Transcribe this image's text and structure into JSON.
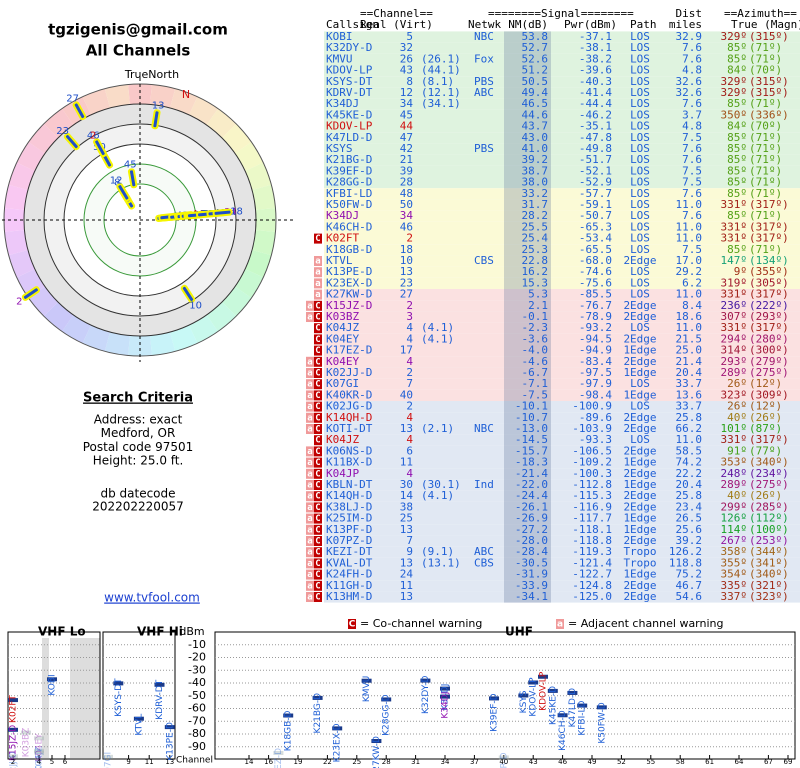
{
  "header": {
    "email": "tgzigenis@gmail.com",
    "title": "All Channels"
  },
  "radar": {
    "title": "TrueNorth",
    "north": "N"
  },
  "search": {
    "title": "Search Criteria",
    "lines": [
      "Address: exact",
      "Medford, OR",
      "Postal code 97501",
      "Height: 25.0 ft."
    ]
  },
  "datecode": {
    "label": "db datecode",
    "value": "202202220057"
  },
  "link": "www.tvfool.com",
  "table": {
    "group_headers": {
      "channel": "==Channel==",
      "signal": "========Signal========",
      "dist": "Dist",
      "azimuth": "==Azimuth=="
    },
    "headers": {
      "callsign": "Callsign",
      "channel": "Real (Virt)",
      "network": "Netwk",
      "nm": "NM(dB)",
      "pwr": "Pwr(dBm)",
      "path": "Path",
      "dist": "miles",
      "azimuth": "True (Magn)"
    },
    "rows": [
      {
        "call": "KOBI",
        "real": "5",
        "net": "NBC",
        "nm": "53.8",
        "pwr": "-37.1",
        "path": "LOS",
        "dist": "32.9",
        "true": "329º",
        "magn": "(315º)"
      },
      {
        "call": "K32DY-D",
        "real": "32",
        "nm": "52.7",
        "pwr": "-38.1",
        "path": "LOS",
        "dist": "7.6",
        "true": "85º",
        "magn": "(71º)"
      },
      {
        "call": "KMVU",
        "real": "26",
        "virt": "(26.1)",
        "net": "Fox",
        "nm": "52.6",
        "pwr": "-38.2",
        "path": "LOS",
        "dist": "7.6",
        "true": "85º",
        "magn": "(71º)"
      },
      {
        "call": "KDOV-LP",
        "real": "43",
        "virt": "(44.1)",
        "nm": "51.2",
        "pwr": "-39.6",
        "path": "LOS",
        "dist": "4.8",
        "true": "84º",
        "magn": "(70º)"
      },
      {
        "call": "KSYS-DT",
        "real": "8",
        "virt": "(8.1)",
        "net": "PBS",
        "nm": "50.5",
        "pwr": "-40.3",
        "path": "LOS",
        "dist": "32.6",
        "true": "329º",
        "magn": "(315º)"
      },
      {
        "call": "KDRV-DT",
        "real": "12",
        "virt": "(12.1)",
        "net": "ABC",
        "nm": "49.4",
        "pwr": "-41.4",
        "path": "LOS",
        "dist": "32.6",
        "true": "329º",
        "magn": "(315º)"
      },
      {
        "call": "K34DJ",
        "real": "34",
        "virt": "(34.1)",
        "nm": "46.5",
        "pwr": "-44.4",
        "path": "LOS",
        "dist": "7.6",
        "true": "85º",
        "magn": "(71º)"
      },
      {
        "call": "K45KE-D",
        "real": "45",
        "nm": "44.6",
        "pwr": "-46.2",
        "path": "LOS",
        "dist": "3.7",
        "true": "350º",
        "magn": "(336º)"
      },
      {
        "call": "KDOV-LP",
        "real": "44",
        "nm": "43.7",
        "pwr": "-35.1",
        "path": "LOS",
        "dist": "4.8",
        "true": "84º",
        "magn": "(70º)",
        "color": "#d01010"
      },
      {
        "call": "K47LD-D",
        "real": "47",
        "nm": "43.0",
        "pwr": "-47.8",
        "path": "LOS",
        "dist": "7.5",
        "true": "85º",
        "magn": "(71º)"
      },
      {
        "call": "KSYS",
        "real": "42",
        "net": "PBS",
        "nm": "41.0",
        "pwr": "-49.8",
        "path": "LOS",
        "dist": "7.6",
        "true": "85º",
        "magn": "(71º)"
      },
      {
        "call": "K21BG-D",
        "real": "21",
        "nm": "39.2",
        "pwr": "-51.7",
        "path": "LOS",
        "dist": "7.6",
        "true": "85º",
        "magn": "(71º)"
      },
      {
        "call": "K39EF-D",
        "real": "39",
        "nm": "38.7",
        "pwr": "-52.1",
        "path": "LOS",
        "dist": "7.5",
        "true": "85º",
        "magn": "(71º)"
      },
      {
        "call": "K28GG-D",
        "real": "28",
        "nm": "38.0",
        "pwr": "-52.9",
        "path": "LOS",
        "dist": "7.5",
        "true": "85º",
        "magn": "(71º)"
      },
      {
        "call": "KFBI-LD",
        "real": "48",
        "nm": "33.2",
        "pwr": "-57.7",
        "path": "LOS",
        "dist": "7.6",
        "true": "85º",
        "magn": "(71º)"
      },
      {
        "call": "K50FW-D",
        "real": "50",
        "nm": "31.7",
        "pwr": "-59.1",
        "path": "LOS",
        "dist": "11.0",
        "true": "331º",
        "magn": "(317º)"
      },
      {
        "call": "K34DJ",
        "real": "34",
        "nm": "28.2",
        "pwr": "-50.7",
        "path": "LOS",
        "dist": "7.6",
        "true": "85º",
        "magn": "(71º)",
        "color": "#9010b0"
      },
      {
        "call": "K46CH-D",
        "real": "46",
        "nm": "25.5",
        "pwr": "-65.3",
        "path": "LOS",
        "dist": "11.0",
        "true": "331º",
        "magn": "(317º)"
      },
      {
        "warn": [
          "C"
        ],
        "call": "K02FT",
        "real": "2",
        "nm": "25.4",
        "pwr": "-53.4",
        "path": "LOS",
        "dist": "11.0",
        "true": "331º",
        "magn": "(317º)",
        "color": "#d01010"
      },
      {
        "call": "K18GB-D",
        "real": "18",
        "nm": "25.3",
        "pwr": "-65.5",
        "path": "LOS",
        "dist": "7.5",
        "true": "85º",
        "magn": "(71º)"
      },
      {
        "warn": [
          "a"
        ],
        "call": "KTVL",
        "real": "10",
        "net": "CBS",
        "nm": "22.8",
        "pwr": "-68.0",
        "path": "2Edge",
        "dist": "17.0",
        "true": "147º",
        "magn": "(134º)"
      },
      {
        "warn": [
          "a"
        ],
        "call": "K13PE-D",
        "real": "13",
        "nm": "16.2",
        "pwr": "-74.6",
        "path": "LOS",
        "dist": "29.2",
        "true": "9º",
        "magn": "(355º)"
      },
      {
        "warn": [
          "a"
        ],
        "call": "K23EX-D",
        "real": "23",
        "nm": "15.3",
        "pwr": "-75.6",
        "path": "LOS",
        "dist": "6.2",
        "true": "319º",
        "magn": "(305º)"
      },
      {
        "warn": [
          "a"
        ],
        "call": "K27KW-D",
        "real": "27",
        "nm": "5.3",
        "pwr": "-85.5",
        "path": "LOS",
        "dist": "11.0",
        "true": "331º",
        "magn": "(317º)"
      },
      {
        "warn": [
          "a",
          "C"
        ],
        "call": "K15JZ-D",
        "real": "2",
        "nm": "2.1",
        "pwr": "-76.7",
        "path": "2Edge",
        "dist": "8.4",
        "true": "236º",
        "magn": "(222º)",
        "color": "#9010b0"
      },
      {
        "warn": [
          "a",
          "C"
        ],
        "call": "K03BZ",
        "real": "3",
        "nm": "-0.1",
        "pwr": "-78.9",
        "path": "2Edge",
        "dist": "18.6",
        "true": "307º",
        "magn": "(293º)",
        "color": "#9010b0"
      },
      {
        "warn": [
          "C"
        ],
        "call": "K04JZ",
        "real": "4",
        "virt": "(4.1)",
        "nm": "-2.3",
        "pwr": "-93.2",
        "path": "LOS",
        "dist": "11.0",
        "true": "331º",
        "magn": "(317º)"
      },
      {
        "warn": [
          "C"
        ],
        "call": "K04EY",
        "real": "4",
        "virt": "(4.1)",
        "nm": "-3.6",
        "pwr": "-94.5",
        "path": "2Edge",
        "dist": "21.5",
        "true": "294º",
        "magn": "(280º)"
      },
      {
        "warn": [
          "C"
        ],
        "call": "K17EZ-D",
        "real": "17",
        "nm": "-4.0",
        "pwr": "-94.9",
        "path": "1Edge",
        "dist": "25.0",
        "true": "314º",
        "magn": "(300º)"
      },
      {
        "warn": [
          "a",
          "C"
        ],
        "call": "K04EY",
        "real": "4",
        "nm": "-4.6",
        "pwr": "-83.4",
        "path": "2Edge",
        "dist": "21.4",
        "true": "293º",
        "magn": "(279º)",
        "color": "#9010b0"
      },
      {
        "warn": [
          "a",
          "C"
        ],
        "call": "K02JJ-D",
        "real": "2",
        "nm": "-6.7",
        "pwr": "-97.5",
        "path": "1Edge",
        "dist": "20.4",
        "true": "289º",
        "magn": "(275º)"
      },
      {
        "warn": [
          "a",
          "C"
        ],
        "call": "K07GI",
        "real": "7",
        "nm": "-7.1",
        "pwr": "-97.9",
        "path": "LOS",
        "dist": "33.7",
        "true": "26º",
        "magn": "(12º)"
      },
      {
        "warn": [
          "a",
          "C"
        ],
        "call": "K40KR-D",
        "real": "40",
        "nm": "-7.5",
        "pwr": "-98.4",
        "path": "1Edge",
        "dist": "13.6",
        "true": "323º",
        "magn": "(309º)"
      },
      {
        "warn": [
          "a",
          "C"
        ],
        "call": "K02JG-D",
        "real": "2",
        "nm": "-10.1",
        "pwr": "-100.9",
        "path": "LOS",
        "dist": "33.7",
        "true": "26º",
        "magn": "(12º)"
      },
      {
        "warn": [
          "a",
          "C"
        ],
        "call": "K14QH-D",
        "real": "4",
        "nm": "-10.7",
        "pwr": "-89.6",
        "path": "2Edge",
        "dist": "25.8",
        "true": "40º",
        "magn": "(26º)",
        "color": "#d01010"
      },
      {
        "warn": [
          "a",
          "C"
        ],
        "call": "KOTI-DT",
        "real": "13",
        "virt": "(2.1)",
        "net": "NBC",
        "nm": "-13.0",
        "pwr": "-103.9",
        "path": "2Edge",
        "dist": "66.2",
        "true": "101º",
        "magn": "(87º)"
      },
      {
        "warn": [
          "C"
        ],
        "call": "K04JZ",
        "real": "4",
        "nm": "-14.5",
        "pwr": "-93.3",
        "path": "LOS",
        "dist": "11.0",
        "true": "331º",
        "magn": "(317º)",
        "color": "#d01010"
      },
      {
        "warn": [
          "a",
          "C"
        ],
        "call": "K06NS-D",
        "real": "6",
        "nm": "-15.7",
        "pwr": "-106.5",
        "path": "2Edge",
        "dist": "58.5",
        "true": "91º",
        "magn": "(77º)"
      },
      {
        "warn": [
          "a",
          "C"
        ],
        "call": "K11BX-D",
        "real": "11",
        "nm": "-18.3",
        "pwr": "-109.2",
        "path": "1Edge",
        "dist": "74.2",
        "true": "353º",
        "magn": "(340º)"
      },
      {
        "warn": [
          "a",
          "C"
        ],
        "call": "K04JP",
        "real": "4",
        "nm": "-21.4",
        "pwr": "-100.3",
        "path": "2Edge",
        "dist": "22.2",
        "true": "248º",
        "magn": "(234º)",
        "color": "#9010b0"
      },
      {
        "warn": [
          "a",
          "C"
        ],
        "call": "KBLN-DT",
        "real": "30",
        "virt": "(30.1)",
        "net": "Ind",
        "nm": "-22.0",
        "pwr": "-112.8",
        "path": "1Edge",
        "dist": "20.4",
        "true": "289º",
        "magn": "(275º)"
      },
      {
        "warn": [
          "a",
          "C"
        ],
        "call": "K14QH-D",
        "real": "14",
        "virt": "(4.1)",
        "nm": "-24.4",
        "pwr": "-115.3",
        "path": "2Edge",
        "dist": "25.8",
        "true": "40º",
        "magn": "(26º)"
      },
      {
        "warn": [
          "a",
          "C"
        ],
        "call": "K38LJ-D",
        "real": "38",
        "nm": "-26.1",
        "pwr": "-116.9",
        "path": "2Edge",
        "dist": "23.4",
        "true": "299º",
        "magn": "(285º)"
      },
      {
        "warn": [
          "a",
          "C"
        ],
        "call": "K25IM-D",
        "real": "25",
        "nm": "-26.9",
        "pwr": "-117.7",
        "path": "1Edge",
        "dist": "26.5",
        "true": "126º",
        "magn": "(112º)"
      },
      {
        "warn": [
          "a",
          "C"
        ],
        "call": "K13PF-D",
        "real": "13",
        "nm": "-27.2",
        "pwr": "-118.1",
        "path": "1Edge",
        "dist": "25.6",
        "true": "114º",
        "magn": "(100º)"
      },
      {
        "warn": [
          "a",
          "C"
        ],
        "call": "K07PZ-D",
        "real": "7",
        "nm": "-28.0",
        "pwr": "-118.8",
        "path": "2Edge",
        "dist": "39.2",
        "true": "267º",
        "magn": "(253º)"
      },
      {
        "warn": [
          "a",
          "C"
        ],
        "call": "KEZI-DT",
        "real": "9",
        "virt": "(9.1)",
        "net": "ABC",
        "nm": "-28.4",
        "pwr": "-119.3",
        "path": "Tropo",
        "dist": "126.2",
        "true": "358º",
        "magn": "(344º)"
      },
      {
        "warn": [
          "a",
          "C"
        ],
        "call": "KVAL-DT",
        "real": "13",
        "virt": "(13.1)",
        "net": "CBS",
        "nm": "-30.5",
        "pwr": "-121.4",
        "path": "Tropo",
        "dist": "118.8",
        "true": "355º",
        "magn": "(341º)"
      },
      {
        "warn": [
          "a",
          "C"
        ],
        "call": "K24FH-D",
        "real": "24",
        "nm": "-31.9",
        "pwr": "-122.7",
        "path": "1Edge",
        "dist": "75.2",
        "true": "354º",
        "magn": "(340º)"
      },
      {
        "warn": [
          "a",
          "C"
        ],
        "call": "K11GH-D",
        "real": "11",
        "nm": "-33.9",
        "pwr": "-124.8",
        "path": "2Edge",
        "dist": "46.7",
        "true": "335º",
        "magn": "(321º)"
      },
      {
        "warn": [
          "a",
          "C"
        ],
        "call": "K13HM-D",
        "real": "13",
        "nm": "-34.1",
        "pwr": "-125.0",
        "path": "2Edge",
        "dist": "54.6",
        "true": "337º",
        "magn": "(323º)"
      }
    ]
  },
  "legend": {
    "co": {
      "icon": "C",
      "text": "= Co-channel warning"
    },
    "adj": {
      "icon": "a",
      "text": "= Adjacent channel warning"
    }
  },
  "spectrum": {
    "unit": "dBm",
    "x_label": "Channel",
    "ylim": [
      0,
      -100
    ],
    "yticks": [
      -10,
      -20,
      -30,
      -40,
      -50,
      -60,
      -70,
      -80,
      -90
    ],
    "vhf_lo": {
      "title": "VHF Lo",
      "xticks": [
        2,
        4,
        5,
        6
      ]
    },
    "vhf_hi": {
      "title": "VHF Hi",
      "xticks": [
        9,
        11,
        13
      ]
    },
    "uhf": {
      "title": "UHF",
      "xticks": [
        14,
        16,
        19,
        22,
        25,
        28,
        31,
        34,
        37,
        40,
        43,
        46,
        49,
        52,
        55,
        58,
        61,
        64,
        67,
        69
      ]
    }
  }
}
